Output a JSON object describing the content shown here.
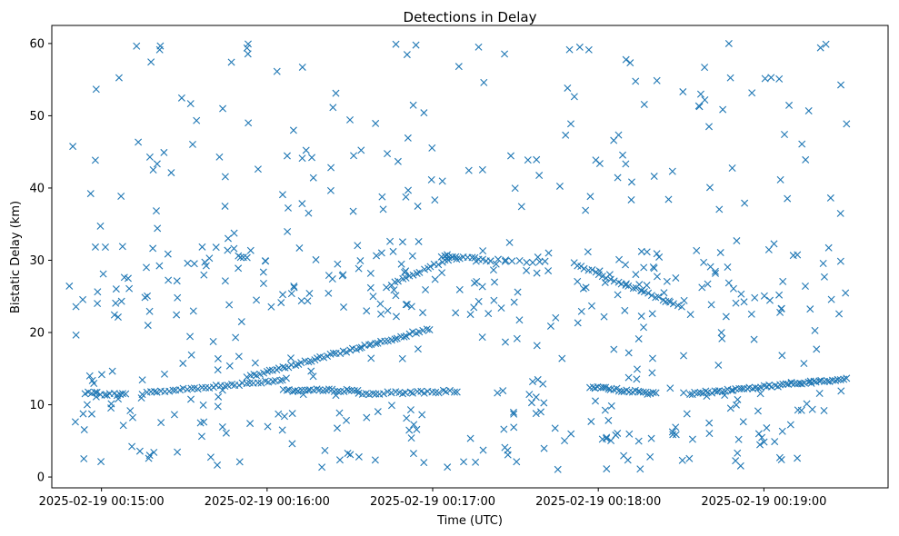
{
  "chart_data": {
    "type": "scatter",
    "title": "Detections in Delay",
    "xlabel": "Time (UTC)",
    "ylabel": "Bistatic Delay (km)",
    "marker": "x",
    "color": "#1f77b4",
    "xlim": [
      -0.3,
      4.75
    ],
    "ylim": [
      -1.5,
      62.5
    ],
    "x_ticks": [
      {
        "value": 0,
        "label": "2025-02-19 00:15:00"
      },
      {
        "value": 1,
        "label": "2025-02-19 00:16:00"
      },
      {
        "value": 2,
        "label": "2025-02-19 00:17:00"
      },
      {
        "value": 3,
        "label": "2025-02-19 00:18:00"
      },
      {
        "value": 4,
        "label": "2025-02-19 00:19:00"
      }
    ],
    "y_ticks": [
      0,
      10,
      20,
      30,
      40,
      50,
      60
    ],
    "x_unit": "minutes after 00:15:00",
    "tracks": [
      {
        "x0": -0.1,
        "x1": 0.15,
        "y0": 11.6,
        "y1": 11.4,
        "n": 14
      },
      {
        "x0": 0.25,
        "x1": 1.12,
        "y0": 11.6,
        "y1": 13.5,
        "n": 40
      },
      {
        "x0": 0.88,
        "x1": 1.98,
        "y0": 13.8,
        "y1": 20.5,
        "n": 58
      },
      {
        "x0": 1.1,
        "x1": 1.55,
        "y0": 12.0,
        "y1": 12.0,
        "n": 26
      },
      {
        "x0": 1.55,
        "x1": 2.15,
        "y0": 11.5,
        "y1": 11.9,
        "n": 28
      },
      {
        "x0": 1.75,
        "x1": 2.12,
        "y0": 26.6,
        "y1": 30.4,
        "n": 18
      },
      {
        "x0": 2.05,
        "x1": 2.35,
        "y0": 30.6,
        "y1": 30.0,
        "n": 14
      },
      {
        "x0": 2.85,
        "x1": 3.5,
        "y0": 29.6,
        "y1": 23.5,
        "n": 30
      },
      {
        "x0": 2.95,
        "x1": 3.35,
        "y0": 12.5,
        "y1": 11.5,
        "n": 26
      },
      {
        "x0": 3.55,
        "x1": 4.5,
        "y0": 11.5,
        "y1": 13.6,
        "n": 58
      },
      {
        "x0": 2.35,
        "x1": 2.65,
        "y0": 30.0,
        "y1": 29.8,
        "n": 8
      }
    ],
    "random_points": 560,
    "point_seed": 7
  }
}
